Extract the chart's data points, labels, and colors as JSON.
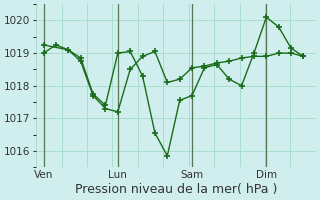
{
  "background_color": "#d0eeee",
  "grid_color": "#aaddcc",
  "line_color": "#1a6b1a",
  "marker_color": "#1a6b1a",
  "xlabel": "Pression niveau de la mer( hPa )",
  "xlabel_fontsize": 9,
  "ylim": [
    1015.5,
    1020.5
  ],
  "yticks": [
    1016,
    1017,
    1018,
    1019,
    1020
  ],
  "day_labels": [
    "Ven",
    "Lun",
    "Sam",
    "Dim"
  ],
  "day_positions": [
    0,
    3,
    6,
    9
  ],
  "series1_x": [
    0,
    0.5,
    1,
    1.5,
    2,
    2.5,
    3,
    3.5,
    4,
    4.5,
    5,
    5.5,
    6,
    6.5,
    7,
    7.5,
    8,
    8.5,
    9,
    9.5,
    10,
    10.5
  ],
  "series1_y": [
    1019.0,
    1019.25,
    1019.1,
    1018.75,
    1017.7,
    1017.3,
    1017.2,
    1018.5,
    1018.9,
    1019.05,
    1018.1,
    1018.2,
    1018.55,
    1018.6,
    1018.7,
    1018.75,
    1018.85,
    1018.9,
    1018.9,
    1019.0,
    1019.0,
    1018.9
  ],
  "series2_x": [
    0,
    1,
    1.5,
    2,
    2.5,
    3,
    3.5,
    4,
    4.5,
    5,
    5.5,
    6,
    6.5,
    7,
    7.5,
    8,
    8.5,
    9,
    9.5,
    10,
    10.5
  ],
  "series2_y": [
    1019.25,
    1019.1,
    1018.85,
    1017.75,
    1017.4,
    1019.0,
    1019.05,
    1018.3,
    1016.55,
    1015.85,
    1017.55,
    1017.7,
    1018.55,
    1018.65,
    1018.2,
    1018.0,
    1019.0,
    1020.1,
    1019.8,
    1019.15,
    1018.9
  ],
  "xlim": [
    -0.3,
    11.0
  ],
  "vline_positions": [
    0,
    3,
    6,
    9
  ],
  "figsize": [
    3.2,
    2.0
  ],
  "dpi": 100
}
